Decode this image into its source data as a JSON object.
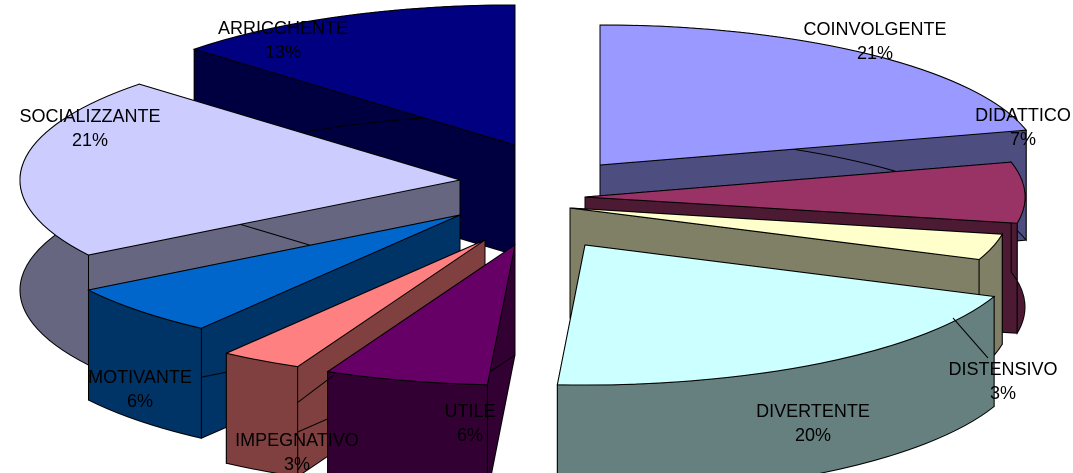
{
  "chart_data": {
    "type": "pie",
    "style": "3d-exploded",
    "title": "",
    "slices": [
      {
        "label": "COINVOLGENTE",
        "value": 21,
        "pct_label": "21%",
        "top": "#9999FF",
        "side": "#4D4D80"
      },
      {
        "label": "DIDATTICO",
        "value": 7,
        "pct_label": "7%",
        "top": "#993366",
        "side": "#4D1A33"
      },
      {
        "label": "DISTENSIVO",
        "value": 3,
        "pct_label": "3%",
        "top": "#FFFFCC",
        "side": "#808066"
      },
      {
        "label": "DIVERTENTE",
        "value": 20,
        "pct_label": "20%",
        "top": "#CCFFFF",
        "side": "#668080"
      },
      {
        "label": "UTILE",
        "value": 6,
        "pct_label": "6%",
        "top": "#660066",
        "side": "#330033"
      },
      {
        "label": "IMPEGNATIVO",
        "value": 3,
        "pct_label": "3%",
        "top": "#FF8080",
        "side": "#804040"
      },
      {
        "label": "MOTIVANTE",
        "value": 6,
        "pct_label": "6%",
        "top": "#0066CC",
        "side": "#003366"
      },
      {
        "label": "SOCIALIZZANTE",
        "value": 21,
        "pct_label": "21%",
        "top": "#CCCCFF",
        "side": "#666680"
      },
      {
        "label": "ARRICCHENTE",
        "value": 13,
        "pct_label": "13%",
        "top": "#000080",
        "side": "#000040"
      }
    ]
  }
}
